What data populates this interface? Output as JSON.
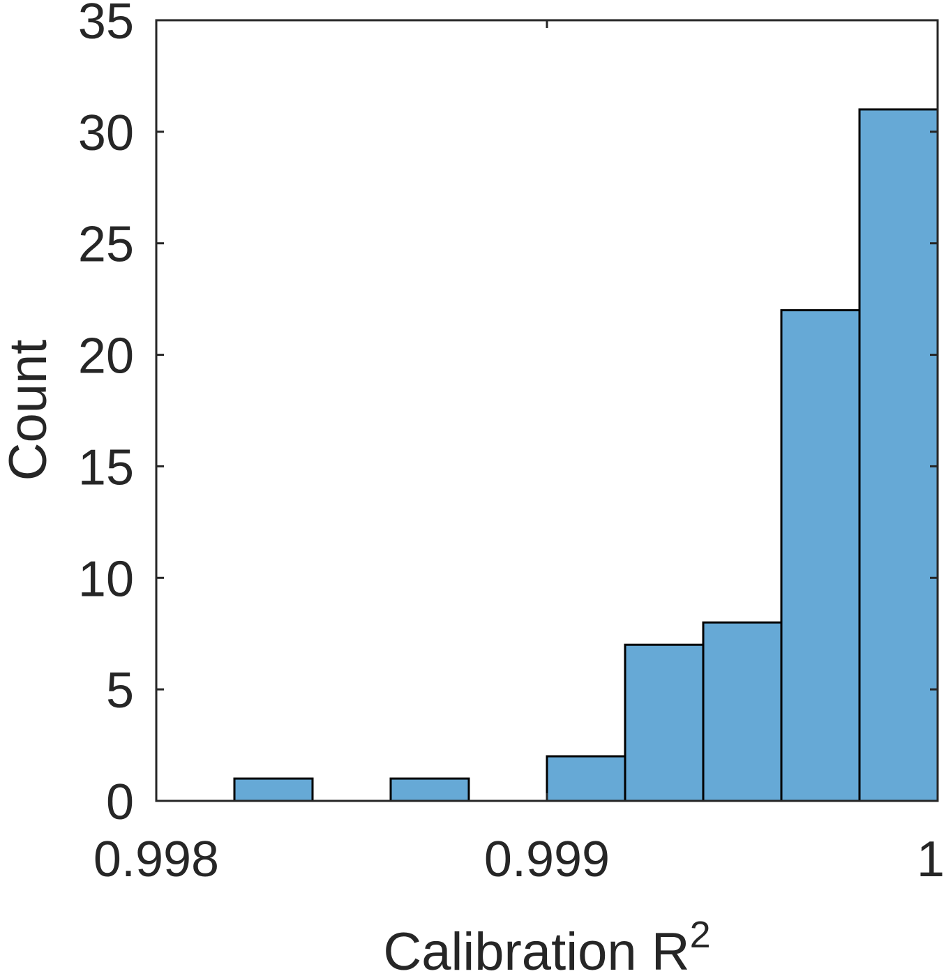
{
  "chart_data": {
    "type": "bar",
    "subtype": "histogram",
    "bin_edges": [
      0.998,
      0.9982,
      0.9984,
      0.9986,
      0.9988,
      0.999,
      0.9992,
      0.9994,
      0.9996,
      0.9998,
      1.0
    ],
    "values": [
      0,
      1,
      0,
      1,
      0,
      2,
      7,
      8,
      22,
      31
    ],
    "xlabel": "Calibration R",
    "xlabel_superscript": "2",
    "ylabel": "Count",
    "xlim": [
      0.998,
      1.0
    ],
    "ylim": [
      0,
      35
    ],
    "xticks": [
      0.998,
      0.999,
      1.0
    ],
    "xtick_labels": [
      "0.998",
      "0.999",
      "1"
    ],
    "yticks": [
      0,
      5,
      10,
      15,
      20,
      25,
      30,
      35
    ],
    "ytick_labels": [
      "0",
      "5",
      "10",
      "15",
      "20",
      "25",
      "30",
      "35"
    ],
    "grid": false,
    "bar_color": "#66a9d6",
    "edge_color": "#000000",
    "axis_color": "#262626"
  }
}
